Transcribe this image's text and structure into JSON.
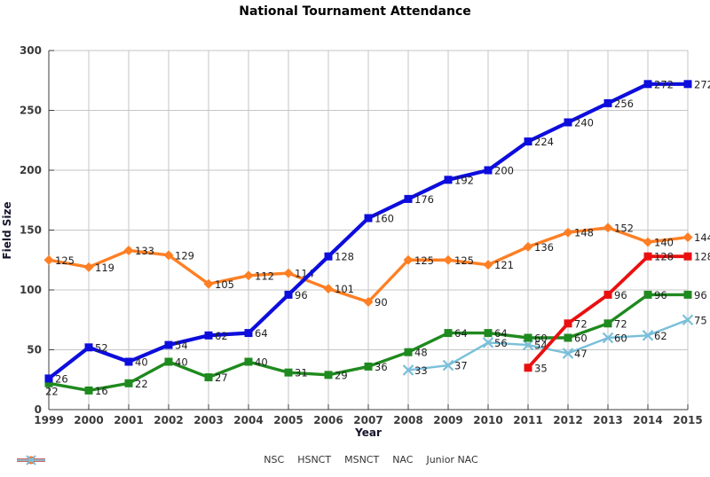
{
  "window": {
    "title": "National Tournament Attendance chart"
  },
  "chart_data": {
    "type": "line",
    "title": "National Tournament Attendance",
    "xlabel": "Year",
    "ylabel": "Field Size",
    "ylim": [
      0,
      300
    ],
    "y_ticks": [
      0,
      50,
      100,
      150,
      200,
      250,
      300
    ],
    "grid": true,
    "legend_position": "bottom",
    "x": [
      1999,
      2000,
      2001,
      2002,
      2003,
      2004,
      2005,
      2006,
      2007,
      2008,
      2009,
      2010,
      2011,
      2012,
      2013,
      2014,
      2015
    ],
    "series": [
      {
        "name": "NSC",
        "color": "#1f8a1f",
        "marker": "square",
        "values": [
          22,
          16,
          22,
          40,
          27,
          40,
          31,
          29,
          36,
          48,
          64,
          64,
          60,
          60,
          72,
          96,
          96
        ]
      },
      {
        "name": "HSNCT",
        "color": "#0d0ddd",
        "marker": "square",
        "values": [
          26,
          52,
          40,
          54,
          62,
          64,
          96,
          128,
          160,
          176,
          192,
          200,
          224,
          240,
          256,
          272,
          272
        ]
      },
      {
        "name": "MSNCT",
        "color": "#ea1010",
        "marker": "square",
        "values": [
          null,
          null,
          null,
          null,
          null,
          null,
          null,
          null,
          null,
          null,
          null,
          null,
          35,
          72,
          96,
          128,
          128
        ]
      },
      {
        "name": "NAC",
        "color": "#ff7f24",
        "marker": "diamond",
        "values": [
          125,
          119,
          133,
          129,
          105,
          112,
          114,
          101,
          90,
          125,
          125,
          121,
          136,
          148,
          152,
          140,
          144
        ]
      },
      {
        "name": "Junior NAC",
        "color": "#79bfda",
        "marker": "x",
        "values": [
          null,
          null,
          null,
          null,
          null,
          null,
          null,
          null,
          null,
          33,
          37,
          56,
          54,
          47,
          60,
          62,
          75
        ]
      }
    ]
  },
  "colors": {
    "grid": "#c6c6c6",
    "axis": "#3c3c3c",
    "tick_label": "#3a3a3a",
    "point_label": "#1f1f1f"
  }
}
